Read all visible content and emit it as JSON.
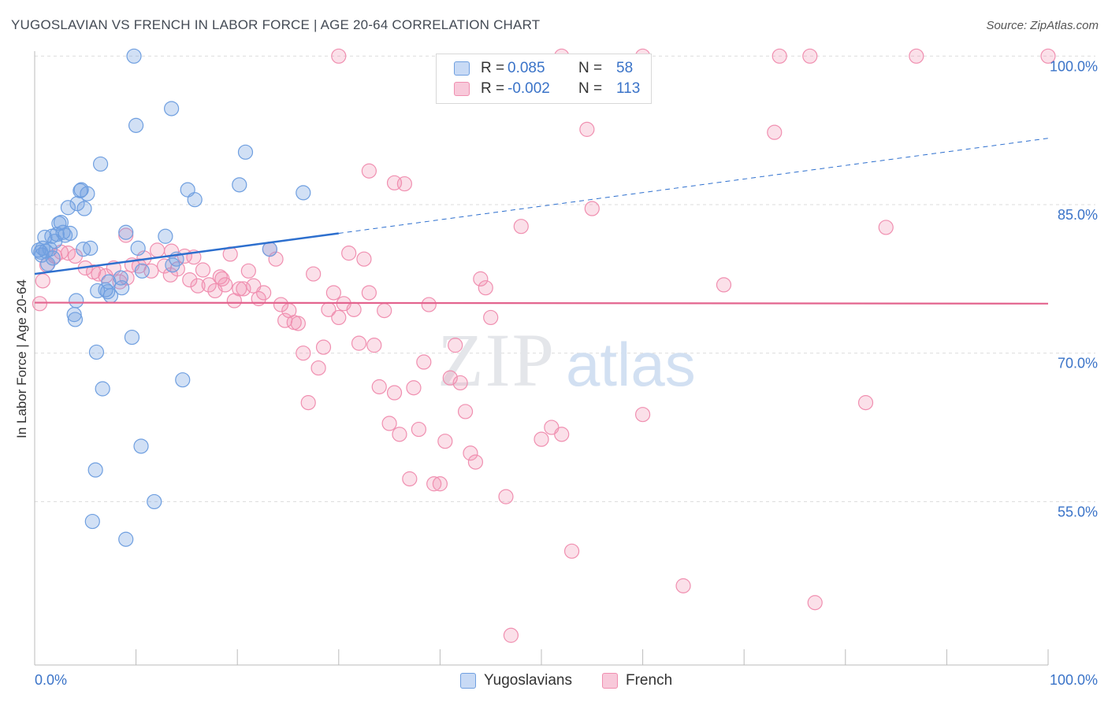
{
  "header": {
    "title": "YUGOSLAVIAN VS FRENCH IN LABOR FORCE | AGE 20-64 CORRELATION CHART",
    "source": "Source: ZipAtlas.com"
  },
  "watermark": {
    "zip": "ZIP",
    "atlas": "atlas"
  },
  "legend": {
    "rows": [
      {
        "r_label": "R =",
        "r_value": "0.085",
        "n_label": "N =",
        "n_value": "58"
      },
      {
        "r_label": "R =",
        "r_value": "-0.002",
        "n_label": "N =",
        "n_value": "113"
      }
    ]
  },
  "bottom_legend": {
    "series1": "Yugoslavians",
    "series2": "French"
  },
  "chart_data": {
    "type": "scatter",
    "title": "YUGOSLAVIAN VS FRENCH IN LABOR FORCE | AGE 20-64 CORRELATION CHART",
    "xlabel": "",
    "ylabel": "In Labor Force | Age 20-64",
    "xlim": [
      0,
      100
    ],
    "ylim": [
      38.5,
      100.5
    ],
    "x_tick_labels": [
      "0.0%",
      "100.0%"
    ],
    "y_tick_values": [
      55,
      70,
      85,
      100
    ],
    "y_tick_labels": [
      "55.0%",
      "70.0%",
      "85.0%",
      "100.0%"
    ],
    "grid": true,
    "colors": {
      "yugoslavians": "#6f9fe0",
      "french": "#f08fb0",
      "yug_line": "#2d6fce",
      "fr_line": "#e3648e"
    },
    "series": [
      {
        "name": "Yugoslavians",
        "stats": {
          "R": 0.085,
          "N": 58
        },
        "trend": {
          "x0": 0,
          "y0": 78.0,
          "x1": 30,
          "y1": 82.1,
          "dashed_to_x": 100,
          "dashed_to_y": 91.7
        },
        "points": [
          [
            0.4,
            80.4
          ],
          [
            0.6,
            80.2
          ],
          [
            0.7,
            79.9
          ],
          [
            0.8,
            80.6
          ],
          [
            1.0,
            81.7
          ],
          [
            1.1,
            80.3
          ],
          [
            1.3,
            79.0
          ],
          [
            1.5,
            80.5
          ],
          [
            1.7,
            81.8
          ],
          [
            1.8,
            79.6
          ],
          [
            2.0,
            81.3
          ],
          [
            2.2,
            82.0
          ],
          [
            2.4,
            83.1
          ],
          [
            2.6,
            83.2
          ],
          [
            2.8,
            82.2
          ],
          [
            3.0,
            81.9
          ],
          [
            3.3,
            84.7
          ],
          [
            3.5,
            82.1
          ],
          [
            4.2,
            85.1
          ],
          [
            4.5,
            86.4
          ],
          [
            4.6,
            86.5
          ],
          [
            4.9,
            84.6
          ],
          [
            5.2,
            86.1
          ],
          [
            5.5,
            80.6
          ],
          [
            4.8,
            80.5
          ],
          [
            6.5,
            89.1
          ],
          [
            6.2,
            76.3
          ],
          [
            7.2,
            76.2
          ],
          [
            7.5,
            75.8
          ],
          [
            8.5,
            77.6
          ],
          [
            8.6,
            76.6
          ],
          [
            9.0,
            82.2
          ],
          [
            9.6,
            71.6
          ],
          [
            10.2,
            80.6
          ],
          [
            10.6,
            78.3
          ],
          [
            9.8,
            100.0
          ],
          [
            10.0,
            93.0
          ],
          [
            12.9,
            81.8
          ],
          [
            13.6,
            78.9
          ],
          [
            14.0,
            79.5
          ],
          [
            13.5,
            94.7
          ],
          [
            14.6,
            67.3
          ],
          [
            15.1,
            86.5
          ],
          [
            15.8,
            85.5
          ],
          [
            20.2,
            87.0
          ],
          [
            20.8,
            90.3
          ],
          [
            23.2,
            80.5
          ],
          [
            26.5,
            86.2
          ],
          [
            7.0,
            76.4
          ],
          [
            7.3,
            77.2
          ],
          [
            3.9,
            73.9
          ],
          [
            4.1,
            75.3
          ],
          [
            4.0,
            73.4
          ],
          [
            6.1,
            70.1
          ],
          [
            6.7,
            66.4
          ],
          [
            10.5,
            60.6
          ],
          [
            6.0,
            58.2
          ],
          [
            11.8,
            55.0
          ],
          [
            5.7,
            53.0
          ],
          [
            9.0,
            51.2
          ]
        ]
      },
      {
        "name": "French",
        "stats": {
          "R": -0.002,
          "N": 113
        },
        "trend": {
          "x0": 0,
          "y0": 75.1,
          "x1": 100,
          "y1": 75.0
        },
        "points": [
          [
            0.5,
            75.0
          ],
          [
            0.8,
            77.3
          ],
          [
            1.2,
            78.9
          ],
          [
            2.0,
            79.8
          ],
          [
            2.6,
            80.2
          ],
          [
            3.3,
            80.1
          ],
          [
            4.0,
            79.8
          ],
          [
            5.0,
            78.6
          ],
          [
            5.8,
            78.2
          ],
          [
            6.3,
            78.0
          ],
          [
            7.0,
            77.8
          ],
          [
            7.8,
            78.6
          ],
          [
            8.4,
            77.2
          ],
          [
            9.1,
            77.6
          ],
          [
            9.6,
            78.9
          ],
          [
            10.3,
            78.8
          ],
          [
            10.8,
            79.6
          ],
          [
            11.5,
            78.3
          ],
          [
            12.1,
            80.4
          ],
          [
            12.8,
            78.8
          ],
          [
            13.4,
            77.9
          ],
          [
            14.1,
            78.5
          ],
          [
            14.8,
            79.8
          ],
          [
            15.3,
            77.4
          ],
          [
            15.7,
            79.7
          ],
          [
            16.1,
            76.8
          ],
          [
            16.6,
            78.4
          ],
          [
            17.2,
            76.9
          ],
          [
            17.8,
            76.3
          ],
          [
            18.3,
            77.7
          ],
          [
            18.8,
            76.9
          ],
          [
            19.3,
            80.0
          ],
          [
            19.7,
            75.3
          ],
          [
            20.2,
            76.5
          ],
          [
            20.6,
            76.5
          ],
          [
            21.1,
            78.3
          ],
          [
            21.6,
            76.8
          ],
          [
            22.1,
            75.5
          ],
          [
            22.6,
            76.1
          ],
          [
            23.2,
            80.5
          ],
          [
            23.8,
            79.5
          ],
          [
            24.3,
            74.9
          ],
          [
            24.7,
            73.3
          ],
          [
            25.1,
            74.3
          ],
          [
            25.6,
            73.1
          ],
          [
            26.0,
            73.0
          ],
          [
            26.5,
            70.0
          ],
          [
            27.0,
            65.0
          ],
          [
            27.5,
            78.0
          ],
          [
            28.0,
            68.5
          ],
          [
            28.5,
            70.6
          ],
          [
            29.0,
            74.4
          ],
          [
            29.5,
            76.1
          ],
          [
            30.0,
            73.6
          ],
          [
            30.5,
            75.0
          ],
          [
            31.0,
            80.1
          ],
          [
            31.5,
            74.4
          ],
          [
            32.0,
            71.0
          ],
          [
            32.5,
            79.5
          ],
          [
            33.0,
            76.1
          ],
          [
            33.5,
            70.8
          ],
          [
            34.0,
            66.6
          ],
          [
            34.5,
            74.3
          ],
          [
            35.0,
            62.9
          ],
          [
            35.5,
            66.0
          ],
          [
            36.0,
            61.8
          ],
          [
            36.5,
            87.1
          ],
          [
            37.0,
            57.3
          ],
          [
            37.4,
            66.5
          ],
          [
            37.9,
            62.3
          ],
          [
            38.4,
            69.1
          ],
          [
            38.9,
            74.9
          ],
          [
            39.4,
            56.8
          ],
          [
            40.0,
            56.8
          ],
          [
            40.5,
            61.1
          ],
          [
            41.0,
            67.5
          ],
          [
            41.5,
            70.8
          ],
          [
            42.0,
            67.0
          ],
          [
            42.5,
            64.1
          ],
          [
            43.0,
            59.9
          ],
          [
            43.5,
            59.0
          ],
          [
            44.0,
            77.5
          ],
          [
            44.5,
            76.6
          ],
          [
            45.0,
            73.6
          ],
          [
            46.5,
            55.5
          ],
          [
            47.0,
            41.5
          ],
          [
            48.0,
            82.8
          ],
          [
            50.0,
            61.3
          ],
          [
            51.0,
            62.5
          ],
          [
            52.0,
            61.8
          ],
          [
            53.0,
            50.0
          ],
          [
            54.5,
            92.6
          ],
          [
            55.0,
            84.6
          ],
          [
            60.0,
            63.8
          ],
          [
            64.0,
            46.5
          ],
          [
            68.0,
            76.9
          ],
          [
            73.0,
            92.3
          ],
          [
            77.0,
            44.8
          ],
          [
            82.0,
            65.0
          ],
          [
            84.0,
            82.7
          ],
          [
            33.0,
            88.4
          ],
          [
            35.5,
            87.2
          ],
          [
            30.0,
            100.0
          ],
          [
            52.0,
            100.0
          ],
          [
            60.0,
            100.0
          ],
          [
            73.5,
            100.0
          ],
          [
            76.5,
            100.0
          ],
          [
            87.0,
            100.0
          ],
          [
            100.0,
            100.0
          ],
          [
            13.5,
            80.3
          ],
          [
            18.5,
            77.5
          ],
          [
            9.0,
            81.9
          ]
        ]
      }
    ]
  }
}
